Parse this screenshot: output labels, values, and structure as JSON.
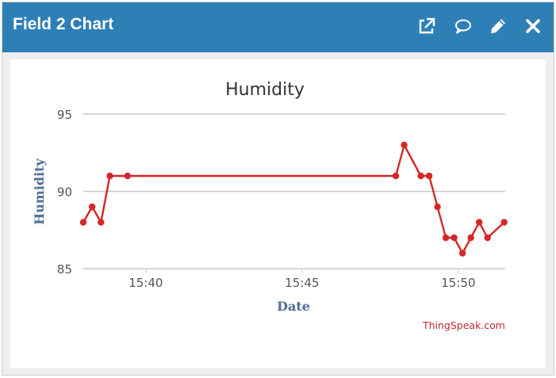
{
  "widget": {
    "title": "Field 2 Chart",
    "icons": [
      "external-link-icon",
      "comment-icon",
      "pencil-icon",
      "close-icon"
    ]
  },
  "colors": {
    "header": "#2f7fb7",
    "line": "#d62728",
    "axis_title": "#4c6e95",
    "credit": "#c0272d"
  },
  "chart_data": {
    "type": "line",
    "title": "Humidity",
    "xlabel": "Date",
    "ylabel": "Humidity",
    "credit": "ThingSpeak.com",
    "xlim": [
      "15:38",
      "15:51:30"
    ],
    "ylim": [
      85,
      95
    ],
    "yticks": [
      85,
      90,
      95
    ],
    "xticks": [
      "15:40",
      "15:45",
      "15:50"
    ],
    "grid": true,
    "series": [
      {
        "x": [
          "15:38:00",
          "15:38:17",
          "15:38:34",
          "15:38:51",
          "15:39:25",
          "15:48:00",
          "15:48:16",
          "15:48:48",
          "15:49:04",
          "15:49:20",
          "15:49:36",
          "15:49:52",
          "15:50:08",
          "15:50:24",
          "15:50:40",
          "15:50:56",
          "15:51:28"
        ],
        "values": [
          88,
          89,
          88,
          91,
          91,
          91,
          93,
          91,
          91,
          89,
          87,
          87,
          86,
          87,
          88,
          87,
          88
        ]
      }
    ]
  }
}
